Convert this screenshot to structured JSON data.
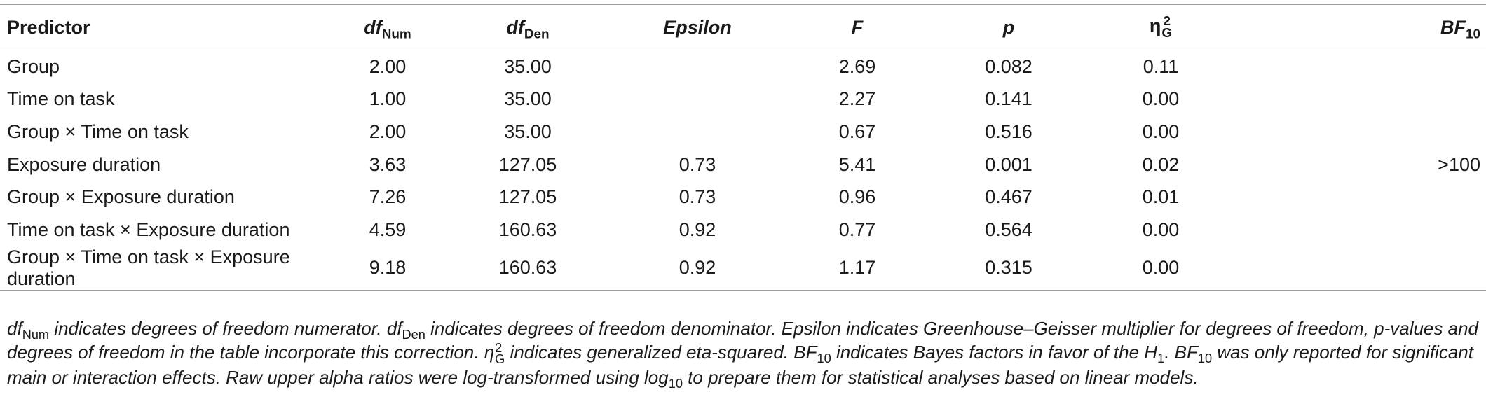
{
  "table": {
    "headers": {
      "predictor": "Predictor",
      "df_num_main": "df",
      "df_num_sub": "Num",
      "df_den_main": "df",
      "df_den_sub": "Den",
      "epsilon": "Epsilon",
      "f": "F",
      "p": "p",
      "eta_main": "η",
      "eta_sup": "2",
      "eta_sub": "G",
      "bf_main": "BF",
      "bf_sub": "10"
    },
    "rows": [
      {
        "predictor": "Group",
        "df_num": "2.00",
        "df_den": "35.00",
        "epsilon": "",
        "f": "2.69",
        "p": "0.082",
        "eta": "0.11",
        "bf": ""
      },
      {
        "predictor": "Time on task",
        "df_num": "1.00",
        "df_den": "35.00",
        "epsilon": "",
        "f": "2.27",
        "p": "0.141",
        "eta": "0.00",
        "bf": ""
      },
      {
        "predictor": "Group × Time on task",
        "df_num": "2.00",
        "df_den": "35.00",
        "epsilon": "",
        "f": "0.67",
        "p": "0.516",
        "eta": "0.00",
        "bf": ""
      },
      {
        "predictor": "Exposure duration",
        "df_num": "3.63",
        "df_den": "127.05",
        "epsilon": "0.73",
        "f": "5.41",
        "p": "0.001",
        "eta": "0.02",
        "bf": ">100"
      },
      {
        "predictor": "Group × Exposure duration",
        "df_num": "7.26",
        "df_den": "127.05",
        "epsilon": "0.73",
        "f": "0.96",
        "p": "0.467",
        "eta": "0.01",
        "bf": ""
      },
      {
        "predictor": "Time on task × Exposure duration",
        "df_num": "4.59",
        "df_den": "160.63",
        "epsilon": "0.92",
        "f": "0.77",
        "p": "0.564",
        "eta": "0.00",
        "bf": ""
      },
      {
        "predictor": "Group × Time on task × Exposure duration",
        "df_num": "9.18",
        "df_den": "160.63",
        "epsilon": "0.92",
        "f": "1.17",
        "p": "0.315",
        "eta": "0.00",
        "bf": ""
      }
    ]
  },
  "footnote": {
    "seg1_df": "df",
    "seg1_sub": "Num",
    "seg2": " indicates degrees of freedom numerator. ",
    "seg3_df": "df",
    "seg3_sub": "Den",
    "seg4": " indicates degrees of freedom denominator. Epsilon indicates Greenhouse–Geisser multiplier for degrees of freedom, p-values and degrees of freedom in the table incorporate this correction. ",
    "seg5_eta": "η",
    "seg5_sup": "2",
    "seg5_sub": "G",
    "seg6": " indicates generalized eta-squared. ",
    "seg7_bf": "BF",
    "seg7_sub": "10",
    "seg8": " indicates Bayes factors in favor of the ",
    "seg9_h": "H",
    "seg9_sub": "1",
    "seg10": ". ",
    "seg11_bf": "BF",
    "seg11_sub": "10",
    "seg12": " was only reported for significant main or interaction effects. Raw upper alpha ratios were log-transformed using log",
    "seg13_sub": "10",
    "seg14": " to prepare them for statistical analyses based on linear models."
  }
}
